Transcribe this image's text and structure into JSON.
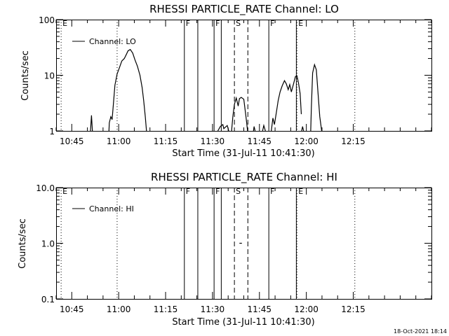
{
  "footer_text": "18-Oct-2021 18:14",
  "chart_data": [
    {
      "type": "line",
      "title": "RHESSI PARTICLE_RATE Channel: LO",
      "xlabel": "Start Time (31-Jul-11 10:41:30)",
      "ylabel": "Counts/sec",
      "y_scale": "log",
      "ylim": [
        1,
        100
      ],
      "y_ticks": [
        1,
        10,
        100
      ],
      "y_tick_labels": [
        "1",
        "10",
        "100"
      ],
      "xlim_minutes_after_1040": [
        0,
        120
      ],
      "x_ticks": [
        5,
        20,
        35,
        50,
        65,
        80,
        95
      ],
      "x_tick_labels": [
        "10:45",
        "11:00",
        "11:15",
        "11:30",
        "11:45",
        "12:00",
        "12:15"
      ],
      "legend": {
        "position": "top-left",
        "entries": [
          "Channel: LO"
        ]
      },
      "event_lines": [
        {
          "t": 1.6,
          "label": "E",
          "style": "dotted"
        },
        {
          "t": 19.5,
          "label": "",
          "style": "dotted"
        },
        {
          "t": 41.0,
          "label": "F",
          "style": "solid"
        },
        {
          "t": 45.3,
          "label": "",
          "style": "solid"
        },
        {
          "t": 50.5,
          "label": "F",
          "style": "solid"
        },
        {
          "t": 52.8,
          "label": "",
          "style": "solid"
        },
        {
          "t": 57.0,
          "label": "S",
          "style": "dashed"
        },
        {
          "t": 61.3,
          "label": "",
          "style": "dashed"
        },
        {
          "t": 68.0,
          "label": "F",
          "style": "solid"
        },
        {
          "t": 76.8,
          "label": "",
          "style": "solid"
        },
        {
          "t": 77.0,
          "label": "E",
          "style": "dotted"
        },
        {
          "t": 95.5,
          "label": "",
          "style": "dotted"
        }
      ],
      "series": [
        {
          "segments": [
            [
              [
                11.0,
                1.0
              ],
              [
                11.3,
                1.9
              ],
              [
                11.6,
                1.0
              ]
            ],
            [
              [
                16.9,
                1.0
              ],
              [
                17.0,
                1.4
              ],
              [
                17.5,
                1.8
              ],
              [
                17.9,
                1.6
              ],
              [
                18.3,
                3.0
              ],
              [
                18.8,
                6.6
              ],
              [
                19.5,
                10.5
              ],
              [
                20.3,
                14.0
              ],
              [
                21.0,
                18.0
              ],
              [
                21.8,
                20.0
              ],
              [
                22.5,
                24.0
              ],
              [
                23.0,
                27.5
              ],
              [
                23.7,
                29.0
              ],
              [
                24.5,
                25.0
              ],
              [
                25.2,
                19.0
              ],
              [
                26.0,
                14.5
              ],
              [
                26.8,
                10.0
              ],
              [
                27.5,
                6.0
              ],
              [
                28.0,
                3.5
              ],
              [
                28.5,
                1.8
              ],
              [
                28.9,
                1.0
              ]
            ],
            [
              [
                51.7,
                1.0
              ],
              [
                52.5,
                1.2
              ],
              [
                53.3,
                1.3
              ],
              [
                53.6,
                1.1
              ],
              [
                54.7,
                1.25
              ],
              [
                55.2,
                1.0
              ]
            ],
            [
              [
                56.1,
                1.0
              ],
              [
                56.5,
                1.8
              ],
              [
                57.0,
                3.0
              ],
              [
                57.6,
                3.9
              ],
              [
                58.2,
                2.8
              ],
              [
                58.6,
                3.8
              ],
              [
                59.2,
                4.0
              ],
              [
                60.0,
                3.7
              ],
              [
                60.7,
                1.8
              ],
              [
                61.2,
                1.0
              ]
            ],
            [
              [
                63.1,
                1.0
              ],
              [
                63.3,
                1.2
              ],
              [
                63.6,
                1.0
              ]
            ],
            [
              [
                66.0,
                1.0
              ],
              [
                66.4,
                1.25
              ],
              [
                66.9,
                1.0
              ]
            ],
            [
              [
                68.8,
                1.0
              ],
              [
                69.3,
                1.7
              ],
              [
                69.8,
                1.3
              ],
              [
                70.5,
                2.3
              ],
              [
                71.0,
                3.5
              ],
              [
                71.6,
                5.0
              ],
              [
                72.3,
                6.5
              ],
              [
                73.0,
                8.0
              ],
              [
                73.6,
                7.0
              ],
              [
                74.2,
                5.5
              ],
              [
                74.7,
                6.8
              ],
              [
                75.2,
                5.0
              ],
              [
                75.9,
                7.0
              ],
              [
                76.5,
                9.5
              ],
              [
                77.0,
                9.8
              ],
              [
                77.5,
                7.2
              ],
              [
                78.0,
                4.7
              ],
              [
                78.4,
                2.0
              ]
            ],
            [
              [
                78.5,
                1.0
              ],
              [
                78.8,
                1.2
              ],
              [
                79.1,
                1.0
              ]
            ],
            [
              [
                81.4,
                1.0
              ],
              [
                81.6,
                2.6
              ],
              [
                82.0,
                11.0
              ],
              [
                82.6,
                15.5
              ],
              [
                83.2,
                12.5
              ],
              [
                83.7,
                5.0
              ],
              [
                84.3,
                1.8
              ],
              [
                84.9,
                1.0
              ]
            ]
          ]
        }
      ]
    },
    {
      "type": "line",
      "title": "RHESSI PARTICLE_RATE Channel: HI",
      "xlabel": "Start Time (31-Jul-11 10:41:30)",
      "ylabel": "Counts/sec",
      "y_scale": "log",
      "ylim": [
        0.1,
        10.0
      ],
      "y_ticks": [
        0.1,
        1.0,
        10.0
      ],
      "y_tick_labels": [
        "0.1",
        "1.0",
        "10.0"
      ],
      "xlim_minutes_after_1040": [
        0,
        120
      ],
      "x_ticks": [
        5,
        20,
        35,
        50,
        65,
        80,
        95
      ],
      "x_tick_labels": [
        "10:45",
        "11:00",
        "11:15",
        "11:30",
        "11:45",
        "12:00",
        "12:15"
      ],
      "legend": {
        "position": "top-left",
        "entries": [
          "Channel: HI"
        ]
      },
      "event_lines": [
        {
          "t": 1.6,
          "label": "E",
          "style": "dotted"
        },
        {
          "t": 19.5,
          "label": "",
          "style": "dotted"
        },
        {
          "t": 41.0,
          "label": "F",
          "style": "solid"
        },
        {
          "t": 45.3,
          "label": "",
          "style": "solid"
        },
        {
          "t": 50.5,
          "label": "F",
          "style": "solid"
        },
        {
          "t": 52.8,
          "label": "",
          "style": "solid"
        },
        {
          "t": 57.0,
          "label": "S",
          "style": "dashed"
        },
        {
          "t": 61.3,
          "label": "",
          "style": "dashed"
        },
        {
          "t": 68.0,
          "label": "F",
          "style": "solid"
        },
        {
          "t": 76.8,
          "label": "",
          "style": "solid"
        },
        {
          "t": 77.0,
          "label": "E",
          "style": "dotted"
        },
        {
          "t": 95.5,
          "label": "",
          "style": "dotted"
        }
      ],
      "series": [
        {
          "segments": [
            [
              [
                58.6,
                1.0
              ],
              [
                59.4,
                1.0
              ]
            ]
          ]
        }
      ]
    }
  ]
}
